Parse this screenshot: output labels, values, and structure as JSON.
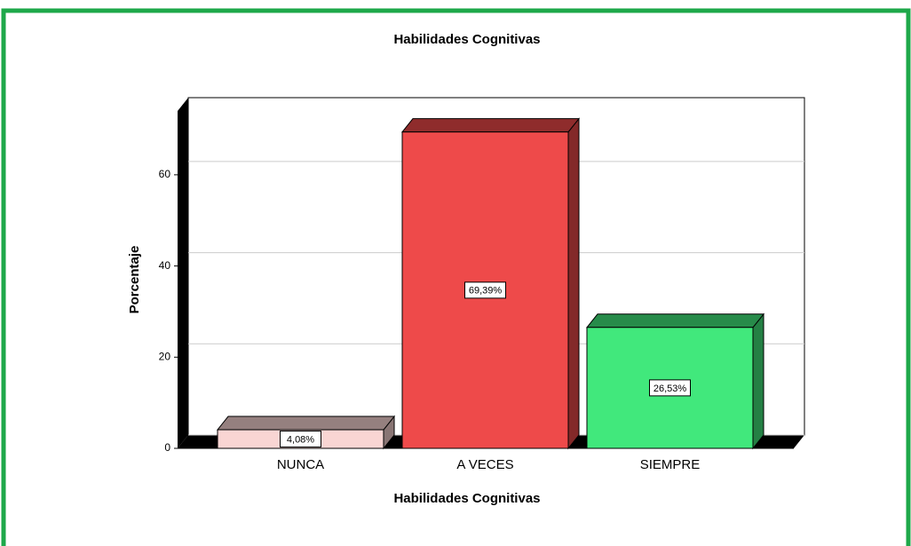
{
  "chart_data": {
    "type": "bar3d",
    "title": "Habilidades Cognitivas",
    "x_label": "Habilidades Cognitivas",
    "y_label": "Porcentaje",
    "categories": [
      "NUNCA",
      "A VECES",
      "SIEMPRE"
    ],
    "values": [
      4.08,
      69.39,
      26.53
    ],
    "value_labels": [
      "4,08%",
      "69,39%",
      "26,53%"
    ],
    "colors": [
      "#f9d5d3",
      "#ee4a4a",
      "#41e87c"
    ],
    "ylim": [
      0,
      74
    ],
    "yticks": [
      0,
      20,
      40,
      60
    ],
    "grid": true
  }
}
